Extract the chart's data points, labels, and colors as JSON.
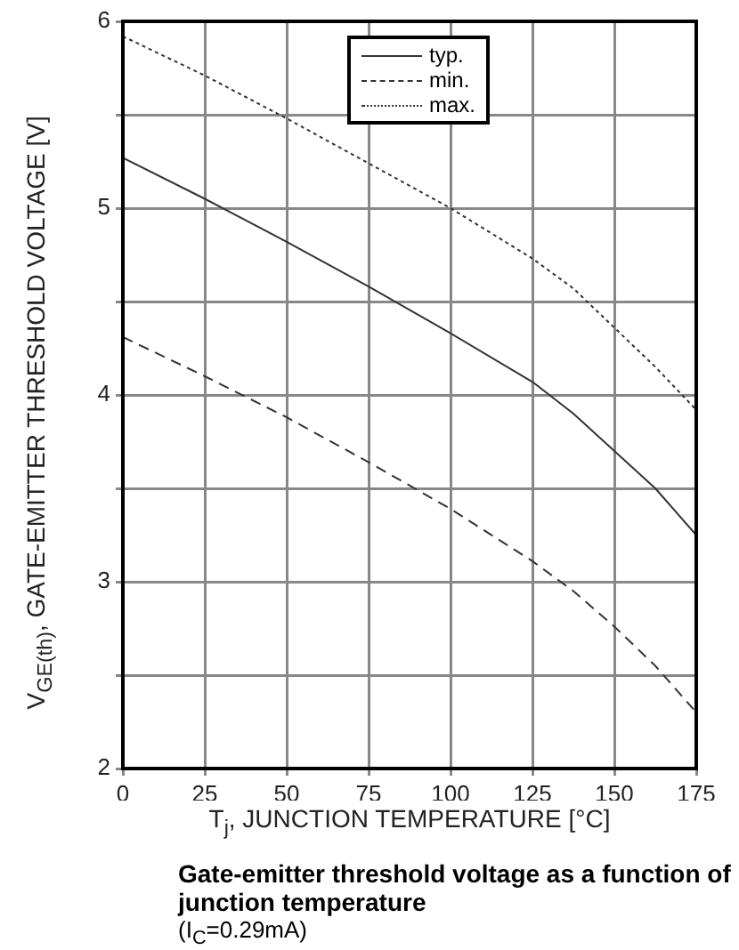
{
  "chart_data": {
    "type": "line",
    "title": "Gate-emitter threshold voltage as a function of junction temperature",
    "subtitle": "(I$_{C}$=0.29mA)",
    "xlabel": "T$_{j}$, JUNCTION TEMPERATURE [°C]",
    "ylabel": "V$_{GE(th)}$, GATE-EMITTER THRESHOLD VOLTAGE [V]",
    "x": [
      0,
      25,
      50,
      75,
      100,
      125,
      137.5,
      150,
      162.5,
      175
    ],
    "series": [
      {
        "name": "typ.",
        "color": "#333333",
        "line_style": "solid",
        "values": [
          5.27,
          5.05,
          4.82,
          4.58,
          4.33,
          4.07,
          3.9,
          3.7,
          3.5,
          3.25
        ]
      },
      {
        "name": "min.",
        "color": "#333333",
        "line_style": "dashed",
        "values": [
          4.31,
          4.1,
          3.88,
          3.64,
          3.39,
          3.11,
          2.95,
          2.76,
          2.55,
          2.3
        ]
      },
      {
        "name": "max.",
        "color": "#333333",
        "line_style": "dotted",
        "values": [
          5.92,
          5.71,
          5.48,
          5.24,
          5.0,
          4.73,
          4.57,
          4.36,
          4.15,
          3.92
        ]
      }
    ],
    "xlim": [
      0,
      175
    ],
    "xticks": [
      0,
      25,
      50,
      75,
      100,
      125,
      150,
      175
    ],
    "ylim": [
      2,
      6
    ],
    "yticks": [
      2,
      {
        "value": 2.5,
        "label": null
      },
      3,
      {
        "value": 3.5,
        "label": null
      },
      4,
      {
        "value": 4.5,
        "label": null
      },
      5,
      {
        "value": 5.5,
        "label": null
      },
      6
    ],
    "grid": true,
    "legend": "top",
    "marker": "none"
  }
}
